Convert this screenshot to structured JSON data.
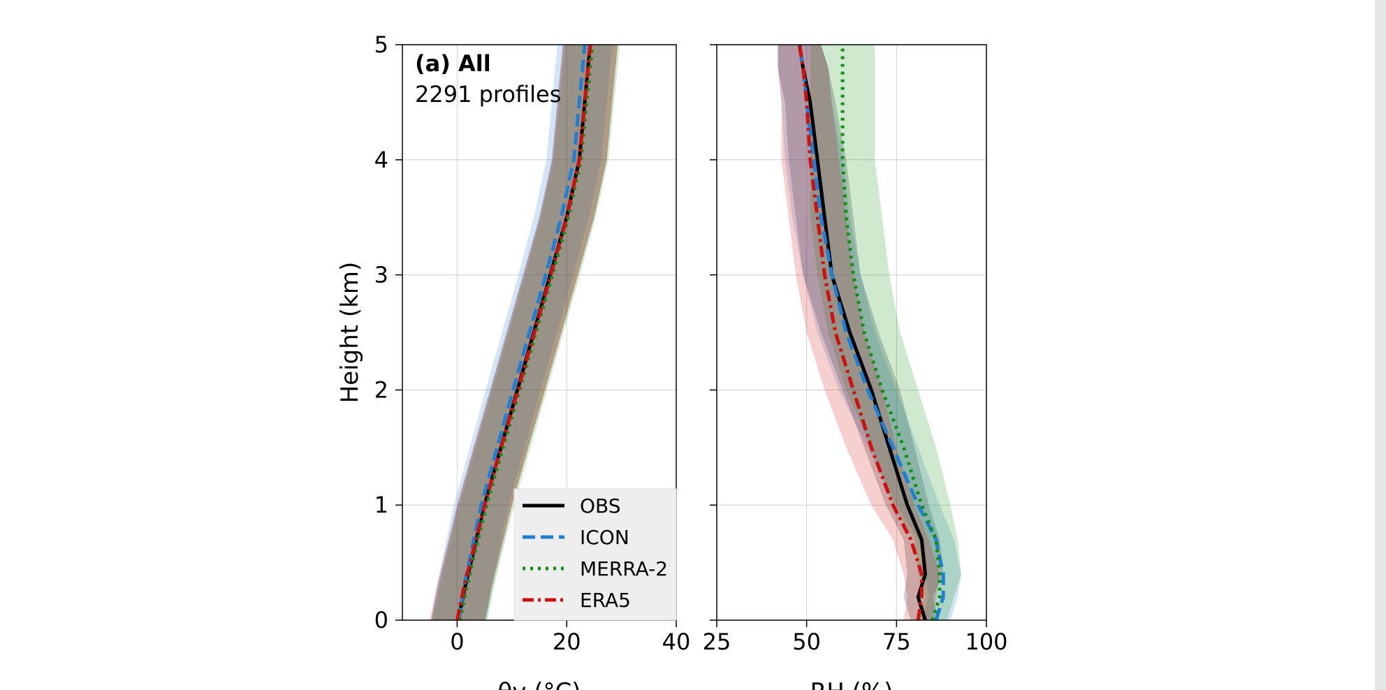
{
  "chart_data": [
    {
      "type": "line",
      "panel_label": "(a) All",
      "annotation": "2291 profiles",
      "xlabel": "θv (°C)",
      "ylabel": "Height (km)",
      "xlim": [
        -10,
        40
      ],
      "ylim": [
        0,
        5
      ],
      "xticks": [
        0,
        20,
        40
      ],
      "yticks": [
        0,
        1,
        2,
        3,
        4,
        5
      ],
      "grid": true,
      "legend_position": "lower-right",
      "series": [
        {
          "name": "OBS",
          "color": "#000000",
          "dash": "solid",
          "x": [
            0.2,
            1.5,
            3.0,
            5.0,
            8.0,
            11.0,
            14.0,
            17.0,
            20.0,
            22.3,
            24.3
          ],
          "y": [
            0.0,
            0.3,
            0.6,
            1.0,
            1.5,
            2.0,
            2.5,
            3.0,
            3.5,
            4.0,
            5.0
          ],
          "band": [
            5,
            5,
            5,
            5,
            5,
            5,
            5,
            5,
            5,
            5,
            5
          ]
        },
        {
          "name": "ICON",
          "color": "#1f7fd4",
          "dash": "dashed",
          "x": [
            0.3,
            1.3,
            2.6,
            4.4,
            7.3,
            10.2,
            13.2,
            16.2,
            19.0,
            21.3,
            23.3
          ],
          "y": [
            0.0,
            0.3,
            0.6,
            1.0,
            1.5,
            2.0,
            2.5,
            3.0,
            3.5,
            4.0,
            5.0
          ],
          "band": [
            5,
            5,
            5,
            5,
            5,
            5,
            5,
            5,
            5,
            5,
            5
          ]
        },
        {
          "name": "MERRA-2",
          "color": "#109010",
          "dash": "dotted",
          "x": [
            0.5,
            1.8,
            3.3,
            5.4,
            8.4,
            11.4,
            14.4,
            17.4,
            20.3,
            22.6,
            24.7
          ],
          "y": [
            0.0,
            0.3,
            0.6,
            1.0,
            1.5,
            2.0,
            2.5,
            3.0,
            3.5,
            4.0,
            5.0
          ],
          "band": [
            5,
            5,
            5,
            5,
            5,
            5,
            5,
            5,
            5,
            5,
            5
          ]
        },
        {
          "name": "ERA5",
          "color": "#d01010",
          "dash": "dashdot",
          "x": [
            0.0,
            1.3,
            2.9,
            5.0,
            8.0,
            11.1,
            14.1,
            17.1,
            20.0,
            22.3,
            24.3
          ],
          "y": [
            0.0,
            0.3,
            0.6,
            1.0,
            1.5,
            2.0,
            2.5,
            3.0,
            3.5,
            4.0,
            5.0
          ],
          "band": [
            5,
            5,
            5,
            5,
            5,
            5,
            5,
            5,
            5,
            5,
            5
          ]
        }
      ]
    },
    {
      "type": "line",
      "xlabel": "RH (%)",
      "ylabel": "",
      "xlim": [
        25,
        100
      ],
      "ylim": [
        0,
        5
      ],
      "xticks": [
        25,
        50,
        75,
        100
      ],
      "yticks": [
        0,
        1,
        2,
        3,
        4,
        5
      ],
      "grid": true,
      "series": [
        {
          "name": "OBS",
          "color": "#000000",
          "dash": "solid",
          "x": [
            83,
            81,
            83,
            82,
            78,
            73,
            68,
            62,
            57,
            55,
            53,
            51,
            49,
            48
          ],
          "y": [
            0.0,
            0.2,
            0.4,
            0.7,
            1.0,
            1.5,
            2.0,
            2.5,
            3.0,
            3.5,
            4.0,
            4.5,
            4.8,
            5.0
          ],
          "band": [
            4,
            4,
            5,
            5,
            6,
            7,
            8,
            8,
            8,
            8,
            8,
            7,
            7,
            6
          ]
        },
        {
          "name": "ICON",
          "color": "#1f7fd4",
          "dash": "dashed",
          "x": [
            86,
            88,
            88,
            86,
            81,
            74,
            67,
            61,
            57,
            54,
            52,
            50,
            49,
            48
          ],
          "y": [
            0.0,
            0.2,
            0.4,
            0.7,
            1.0,
            1.5,
            2.0,
            2.5,
            3.0,
            3.5,
            4.0,
            4.5,
            4.8,
            5.0
          ],
          "band": [
            4,
            4,
            5,
            5,
            6,
            7,
            8,
            8,
            8,
            8,
            8,
            7,
            7,
            6
          ]
        },
        {
          "name": "MERRA-2",
          "color": "#109010",
          "dash": "dotted",
          "x": [
            85,
            87,
            87,
            86,
            82,
            77,
            71,
            66,
            63,
            61,
            60,
            60,
            60,
            60
          ],
          "y": [
            0.0,
            0.2,
            0.4,
            0.7,
            1.0,
            1.5,
            2.0,
            2.5,
            3.0,
            3.5,
            4.0,
            4.5,
            4.8,
            5.0
          ],
          "band": [
            4,
            4,
            6,
            6,
            8,
            9,
            10,
            10,
            10,
            10,
            9,
            9,
            9,
            9
          ]
        },
        {
          "name": "ERA5",
          "color": "#d01010",
          "dash": "dashdot",
          "x": [
            81,
            82,
            82,
            79,
            74,
            68,
            63,
            58,
            55,
            53,
            51,
            50,
            49,
            48
          ],
          "y": [
            0.0,
            0.2,
            0.4,
            0.7,
            1.0,
            1.5,
            2.0,
            2.5,
            3.0,
            3.5,
            4.0,
            4.5,
            4.8,
            5.0
          ],
          "band": [
            4,
            4,
            5,
            5,
            6,
            7,
            8,
            8,
            8,
            8,
            8,
            7,
            7,
            6
          ]
        }
      ]
    }
  ]
}
